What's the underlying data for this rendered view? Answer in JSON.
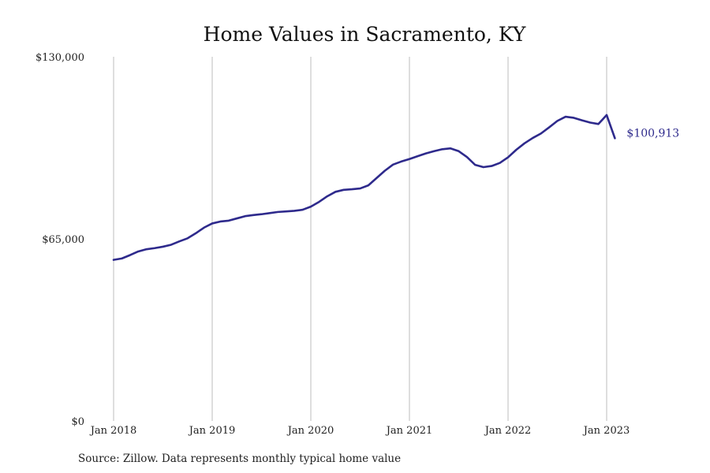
{
  "chart_data": {
    "type": "line",
    "title": "Home Values in Sacramento, KY",
    "xlabel": "",
    "ylabel": "",
    "source": "Source: Zillow. Data represents monthly typical home value",
    "ylim": [
      0,
      130000
    ],
    "y_ticks": [
      0,
      65000,
      130000
    ],
    "y_tick_labels": [
      "$0",
      "$65,000",
      "$130,000"
    ],
    "x_tick_labels": [
      "Jan 2018",
      "Jan 2019",
      "Jan 2020",
      "Jan 2021",
      "Jan 2022",
      "Jan 2023"
    ],
    "x_tick_indices": [
      0,
      12,
      24,
      36,
      48,
      60
    ],
    "grid": "vertical at x ticks",
    "line_color": "#2e2a8c",
    "end_label": "$100,913",
    "series": [
      {
        "values": [
          57500,
          58000,
          59200,
          60500,
          61300,
          61700,
          62200,
          62900,
          64100,
          65200,
          67000,
          69000,
          70500,
          71200,
          71500,
          72300,
          73100,
          73500,
          73800,
          74200,
          74600,
          74800,
          75000,
          75400,
          76500,
          78200,
          80200,
          81800,
          82500,
          82700,
          83000,
          84100,
          86700,
          89300,
          91500,
          92600,
          93500,
          94500,
          95500,
          96300,
          97000,
          97300,
          96300,
          94200,
          91400,
          90600,
          91000,
          92100,
          94100,
          96800,
          99100,
          101000,
          102600,
          104800,
          107100,
          108600,
          108200,
          107300,
          106500,
          106000,
          109200,
          100913
        ]
      }
    ]
  }
}
